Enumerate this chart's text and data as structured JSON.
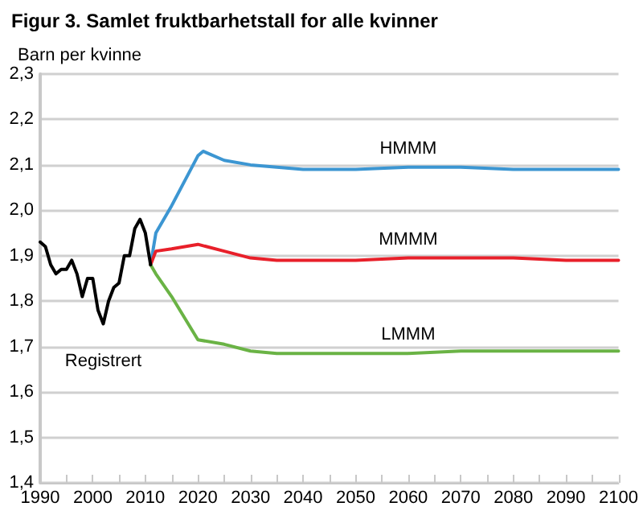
{
  "chart_data": {
    "type": "line",
    "title": "Figur 3. Samlet fruktbarhetstall for alle kvinner",
    "ylabel": "Barn per kvinne",
    "series": [
      {
        "name": "Registrert",
        "color": "#000000",
        "x": [
          1990,
          1991,
          1992,
          1993,
          1994,
          1995,
          1996,
          1997,
          1998,
          1999,
          2000,
          2001,
          2002,
          2003,
          2004,
          2005,
          2006,
          2007,
          2008,
          2009,
          2010,
          2011
        ],
        "values": [
          1.93,
          1.92,
          1.88,
          1.86,
          1.87,
          1.87,
          1.89,
          1.86,
          1.81,
          1.85,
          1.85,
          1.78,
          1.75,
          1.8,
          1.83,
          1.84,
          1.9,
          1.9,
          1.96,
          1.98,
          1.95,
          1.88
        ]
      },
      {
        "name": "HMMM",
        "color": "#3c96d2",
        "x": [
          2011,
          2012,
          2015,
          2020,
          2021,
          2025,
          2030,
          2035,
          2040,
          2050,
          2060,
          2070,
          2080,
          2090,
          2100
        ],
        "values": [
          1.88,
          1.95,
          2.01,
          2.12,
          2.13,
          2.11,
          2.1,
          2.095,
          2.09,
          2.09,
          2.095,
          2.095,
          2.09,
          2.09,
          2.09
        ]
      },
      {
        "name": "MMMM",
        "color": "#e8202a",
        "x": [
          2011,
          2012,
          2015,
          2020,
          2025,
          2030,
          2035,
          2040,
          2050,
          2060,
          2070,
          2080,
          2090,
          2100
        ],
        "values": [
          1.88,
          1.91,
          1.915,
          1.925,
          1.91,
          1.895,
          1.89,
          1.89,
          1.89,
          1.895,
          1.895,
          1.895,
          1.89,
          1.89
        ]
      },
      {
        "name": "LMMM",
        "color": "#6ab345",
        "x": [
          2011,
          2012,
          2015,
          2020,
          2025,
          2030,
          2035,
          2040,
          2050,
          2060,
          2070,
          2080,
          2090,
          2100
        ],
        "values": [
          1.88,
          1.86,
          1.81,
          1.715,
          1.705,
          1.69,
          1.685,
          1.685,
          1.685,
          1.685,
          1.69,
          1.69,
          1.69,
          1.69
        ]
      }
    ],
    "xlim": [
      1990,
      2100
    ],
    "xticks": [
      1990,
      {
        "value": 1995,
        "label": null
      },
      2000,
      {
        "value": 2005,
        "label": null
      },
      2010,
      {
        "value": 2015,
        "label": null
      },
      2020,
      {
        "value": 2025,
        "label": null
      },
      2030,
      {
        "value": 2035,
        "label": null
      },
      2040,
      {
        "value": 2045,
        "label": null
      },
      2050,
      {
        "value": 2055,
        "label": null
      },
      2060,
      {
        "value": 2065,
        "label": null
      },
      2070,
      {
        "value": 2075,
        "label": null
      },
      2080,
      {
        "value": 2085,
        "label": null
      },
      2090,
      {
        "value": 2095,
        "label": null
      },
      2100
    ],
    "ylim": [
      1.4,
      2.3
    ],
    "yticks": [
      {
        "value": 1.4,
        "label": "1,4"
      },
      {
        "value": 1.5,
        "label": "1,5"
      },
      {
        "value": 1.6,
        "label": "1,6"
      },
      {
        "value": 1.7,
        "label": "1,7"
      },
      {
        "value": 1.8,
        "label": "1,8"
      },
      {
        "value": 1.9,
        "label": "1,9"
      },
      {
        "value": 2.0,
        "label": "2,0"
      },
      {
        "value": 2.1,
        "label": "2,1"
      },
      {
        "value": 2.2,
        "label": "2,2"
      },
      {
        "value": 2.3,
        "label": "2,3"
      }
    ],
    "grid": "y",
    "marker": "none",
    "line_style": "solid",
    "legend": false
  }
}
